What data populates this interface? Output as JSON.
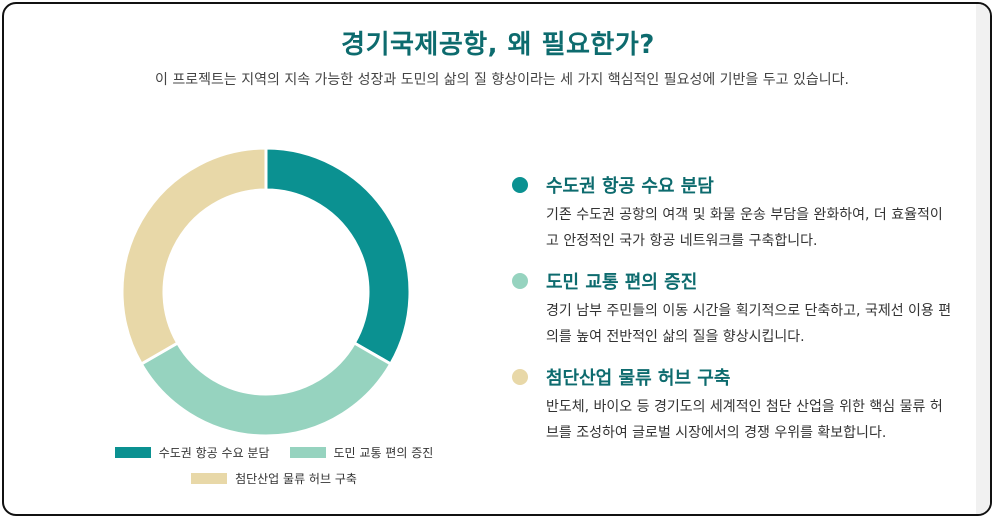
{
  "header": {
    "title": "경기국제공항, 왜 필요한가?",
    "subtitle": "이 프로젝트는 지역의 지속 가능한 성장과 도민의 삶의 질 향상이라는 세 가지 핵심적인 필요성에 기반을 두고 있습니다."
  },
  "chart_data": {
    "type": "pie",
    "donut": true,
    "categories": [
      "수도권 항공 수요 분담",
      "도민 교통 편의 증진",
      "첨단산업 물류 허브 구축"
    ],
    "values": [
      33.3,
      33.3,
      33.3
    ],
    "colors": [
      "#0b9191",
      "#96d3bf",
      "#e8d8a8"
    ],
    "legend_position": "bottom"
  },
  "points": [
    {
      "title": "수도권 항공 수요 분담",
      "description": "기존 수도권 공항의 여객 및 화물 운송 부담을 완화하여, 더 효율적이고 안정적인 국가 항공 네트워크를 구축합니다.",
      "color": "#0b9191"
    },
    {
      "title": "도민 교통 편의 증진",
      "description": "경기 남부 주민들의 이동 시간을 획기적으로 단축하고, 국제선 이용 편의를 높여 전반적인 삶의 질을 향상시킵니다.",
      "color": "#96d3bf"
    },
    {
      "title": "첨단산업 물류 허브 구축",
      "description": "반도체, 바이오 등 경기도의 세계적인 첨단 산업을 위한 핵심 물류 허브를 조성하여 글로벌 시장에서의 경쟁 우위를 확보합니다.",
      "color": "#e8d8a8"
    }
  ]
}
